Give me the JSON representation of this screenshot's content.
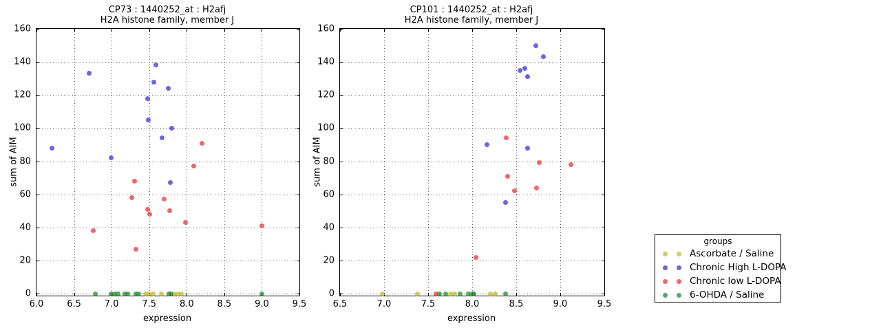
{
  "legend": {
    "title": "groups"
  },
  "groups": [
    {
      "name": "Ascorbate / Saline",
      "color": "#bdbd2a"
    },
    {
      "name": "Chronic High L-DOPA",
      "color": "#3333dd"
    },
    {
      "name": "Chronic low L-DOPA",
      "color": "#ee3333"
    },
    {
      "name": "6-OHDA / Saline",
      "color": "#1f8f2f"
    }
  ],
  "chart_data": [
    {
      "type": "scatter",
      "title": "CP73 : 1440252_at : H2afj",
      "subtitle": "H2A histone family, member J",
      "xlabel": "expression",
      "ylabel": "sum of AIM",
      "xlim": [
        6.0,
        9.5
      ],
      "ylim": [
        0,
        160
      ],
      "xticks": [
        6.0,
        6.5,
        7.0,
        7.5,
        8.0,
        8.5,
        9.0,
        9.5
      ],
      "yticks": [
        0,
        20,
        40,
        60,
        80,
        100,
        120,
        140,
        160
      ],
      "grid": true,
      "series": [
        {
          "name": "Ascorbate / Saline",
          "points": [
            [
              7.45,
              0
            ],
            [
              7.5,
              0
            ],
            [
              7.55,
              0
            ],
            [
              7.66,
              0
            ],
            [
              7.83,
              0
            ],
            [
              7.88,
              0
            ],
            [
              7.93,
              0
            ]
          ]
        },
        {
          "name": "Chronic High L-DOPA",
          "points": [
            [
              6.21,
              88
            ],
            [
              6.7,
              133
            ],
            [
              6.99,
              82
            ],
            [
              7.48,
              118
            ],
            [
              7.49,
              105
            ],
            [
              7.56,
              128
            ],
            [
              7.59,
              138
            ],
            [
              7.67,
              94
            ],
            [
              7.75,
              124
            ],
            [
              7.78,
              67
            ],
            [
              7.8,
              100
            ]
          ]
        },
        {
          "name": "Chronic low L-DOPA",
          "points": [
            [
              6.76,
              38
            ],
            [
              7.27,
              58
            ],
            [
              7.31,
              68
            ],
            [
              7.32,
              27
            ],
            [
              7.48,
              51
            ],
            [
              7.51,
              48
            ],
            [
              7.7,
              57
            ],
            [
              7.77,
              50
            ],
            [
              7.98,
              43
            ],
            [
              8.09,
              77
            ],
            [
              8.2,
              91
            ],
            [
              9.0,
              41
            ]
          ]
        },
        {
          "name": "6-OHDA / Saline",
          "points": [
            [
              6.78,
              0
            ],
            [
              6.99,
              0
            ],
            [
              7.04,
              0
            ],
            [
              7.09,
              0
            ],
            [
              7.18,
              0
            ],
            [
              7.21,
              0
            ],
            [
              7.32,
              0
            ],
            [
              7.36,
              0
            ],
            [
              7.76,
              0
            ],
            [
              7.79,
              0
            ],
            [
              9.0,
              0
            ]
          ]
        }
      ]
    },
    {
      "type": "scatter",
      "title": "CP101 : 1440252_at : H2afj",
      "subtitle": "H2A histone family, member J",
      "xlabel": "expression",
      "ylabel": "sum of AIM",
      "xlim": [
        6.5,
        9.5
      ],
      "ylim": [
        0,
        160
      ],
      "xticks": [
        6.5,
        7.0,
        7.5,
        8.0,
        8.5,
        9.0,
        9.5
      ],
      "yticks": [
        0,
        20,
        40,
        60,
        80,
        100,
        120,
        140,
        160
      ],
      "grid": true,
      "series": [
        {
          "name": "Ascorbate / Saline",
          "points": [
            [
              6.98,
              0
            ],
            [
              7.38,
              0
            ],
            [
              7.75,
              0
            ],
            [
              7.8,
              0
            ],
            [
              8.21,
              0
            ],
            [
              8.26,
              0
            ]
          ]
        },
        {
          "name": "Chronic High L-DOPA",
          "points": [
            [
              8.17,
              90
            ],
            [
              8.38,
              55
            ],
            [
              8.54,
              135
            ],
            [
              8.6,
              136
            ],
            [
              8.63,
              131
            ],
            [
              8.63,
              88
            ],
            [
              8.72,
              150
            ],
            [
              8.81,
              143
            ]
          ]
        },
        {
          "name": "Chronic low L-DOPA",
          "points": [
            [
              7.59,
              0
            ],
            [
              8.04,
              22
            ],
            [
              8.39,
              94
            ],
            [
              8.4,
              71
            ],
            [
              8.48,
              62
            ],
            [
              8.73,
              64
            ],
            [
              8.76,
              79
            ],
            [
              9.12,
              78
            ]
          ]
        },
        {
          "name": "6-OHDA / Saline",
          "points": [
            [
              7.63,
              0
            ],
            [
              7.7,
              0
            ],
            [
              7.86,
              0
            ],
            [
              7.96,
              0
            ],
            [
              8.0,
              0
            ],
            [
              8.02,
              0
            ],
            [
              8.38,
              0
            ]
          ]
        }
      ]
    }
  ]
}
